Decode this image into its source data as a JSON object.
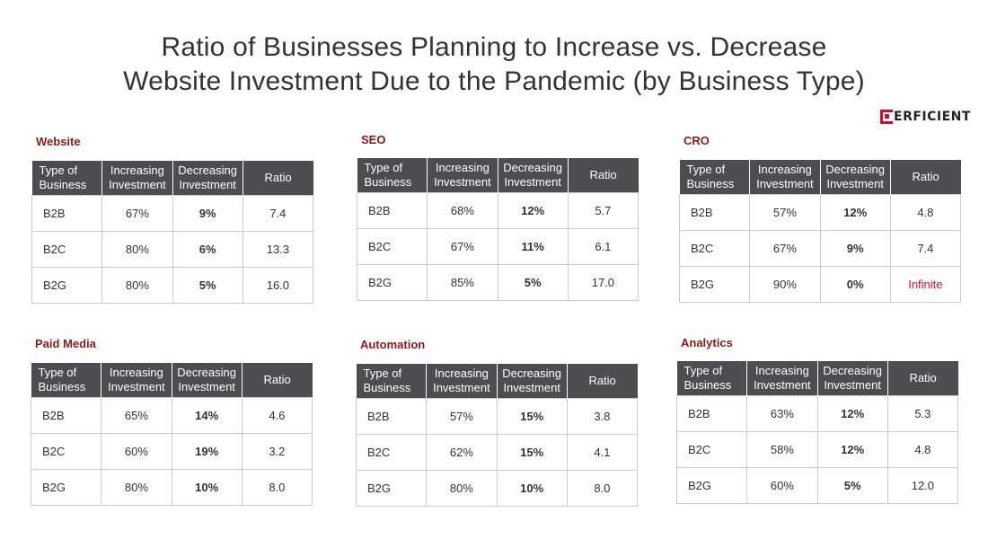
{
  "title_line1": "Ratio of Businesses Planning to Increase vs. Decrease",
  "title_line2": "Website Investment Due to the Pandemic (by Business Type)",
  "logo_text": "ERFICIENT",
  "brand_color": "#c8102e",
  "header_color": "#4d4d4f",
  "chart_data": {
    "type": "table",
    "columns": [
      "Type of Business",
      "Increasing Investment",
      "Decreasing Investment",
      "Ratio"
    ],
    "tables": [
      {
        "name": "Website",
        "title_color": "#8b1a1a",
        "rows": [
          [
            "B2B",
            "67%",
            "9%",
            "7.4"
          ],
          [
            "B2C",
            "80%",
            "6%",
            "13.3"
          ],
          [
            "B2G",
            "80%",
            "5%",
            "16.0"
          ]
        ]
      },
      {
        "name": "SEO",
        "title_color": "#8b1a1a",
        "rows": [
          [
            "B2B",
            "68%",
            "12%",
            "5.7"
          ],
          [
            "B2C",
            "67%",
            "11%",
            "6.1"
          ],
          [
            "B2G",
            "85%",
            "5%",
            "17.0"
          ]
        ]
      },
      {
        "name": "CRO",
        "title_color": "#8b1a1a",
        "rows": [
          [
            "B2B",
            "57%",
            "12%",
            "4.8"
          ],
          [
            "B2C",
            "67%",
            "9%",
            "7.4"
          ],
          [
            "B2G",
            "90%",
            "0%",
            "Infinite"
          ]
        ]
      },
      {
        "name": "Paid Media",
        "title_color": "#8b1a1a",
        "rows": [
          [
            "B2B",
            "65%",
            "14%",
            "4.6"
          ],
          [
            "B2C",
            "60%",
            "19%",
            "3.2"
          ],
          [
            "B2G",
            "80%",
            "10%",
            "8.0"
          ]
        ]
      },
      {
        "name": "Automation",
        "title_color": "#8b1a1a",
        "rows": [
          [
            "B2B",
            "57%",
            "15%",
            "3.8"
          ],
          [
            "B2C",
            "62%",
            "15%",
            "4.1"
          ],
          [
            "B2G",
            "80%",
            "10%",
            "8.0"
          ]
        ]
      },
      {
        "name": "Analytics",
        "title_color": "#8b1a1a",
        "rows": [
          [
            "B2B",
            "63%",
            "12%",
            "5.3"
          ],
          [
            "B2C",
            "58%",
            "12%",
            "4.8"
          ],
          [
            "B2G",
            "60%",
            "5%",
            "12.0"
          ]
        ]
      }
    ]
  }
}
